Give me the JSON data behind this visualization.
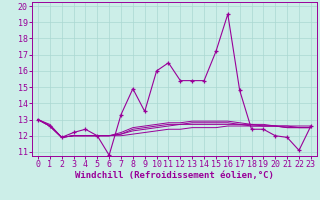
{
  "xlabel": "Windchill (Refroidissement éolien,°C)",
  "background_color": "#cceee8",
  "grid_color": "#aad8d2",
  "line_color": "#990099",
  "xlim": [
    -0.5,
    23.5
  ],
  "ylim": [
    10.75,
    20.25
  ],
  "yticks": [
    11,
    12,
    13,
    14,
    15,
    16,
    17,
    18,
    19,
    20
  ],
  "xticks": [
    0,
    1,
    2,
    3,
    4,
    5,
    6,
    7,
    8,
    9,
    10,
    11,
    12,
    13,
    14,
    15,
    16,
    17,
    18,
    19,
    20,
    21,
    22,
    23
  ],
  "series": [
    [
      13.0,
      12.6,
      11.9,
      12.2,
      12.4,
      12.0,
      10.8,
      13.3,
      14.9,
      13.5,
      16.0,
      16.5,
      15.4,
      15.4,
      15.4,
      17.2,
      19.5,
      14.8,
      12.4,
      12.4,
      12.0,
      11.9,
      11.1,
      12.6
    ],
    [
      13.0,
      12.7,
      11.9,
      12.0,
      12.0,
      12.0,
      12.0,
      12.0,
      12.1,
      12.2,
      12.3,
      12.4,
      12.4,
      12.5,
      12.5,
      12.5,
      12.6,
      12.6,
      12.6,
      12.6,
      12.6,
      12.6,
      12.6,
      12.6
    ],
    [
      13.0,
      12.6,
      11.9,
      12.0,
      12.0,
      12.0,
      12.0,
      12.1,
      12.3,
      12.4,
      12.5,
      12.6,
      12.7,
      12.7,
      12.7,
      12.7,
      12.7,
      12.7,
      12.6,
      12.6,
      12.6,
      12.6,
      12.5,
      12.5
    ],
    [
      13.0,
      12.6,
      11.9,
      12.0,
      12.0,
      12.0,
      12.0,
      12.1,
      12.4,
      12.5,
      12.6,
      12.7,
      12.7,
      12.8,
      12.8,
      12.8,
      12.8,
      12.7,
      12.7,
      12.6,
      12.6,
      12.5,
      12.5,
      12.5
    ],
    [
      13.0,
      12.6,
      11.9,
      12.0,
      12.0,
      12.0,
      12.0,
      12.2,
      12.5,
      12.6,
      12.7,
      12.8,
      12.8,
      12.9,
      12.9,
      12.9,
      12.9,
      12.8,
      12.7,
      12.7,
      12.6,
      12.5,
      12.5,
      12.5
    ]
  ],
  "xlabel_fontsize": 6.5,
  "tick_fontsize": 6.0
}
